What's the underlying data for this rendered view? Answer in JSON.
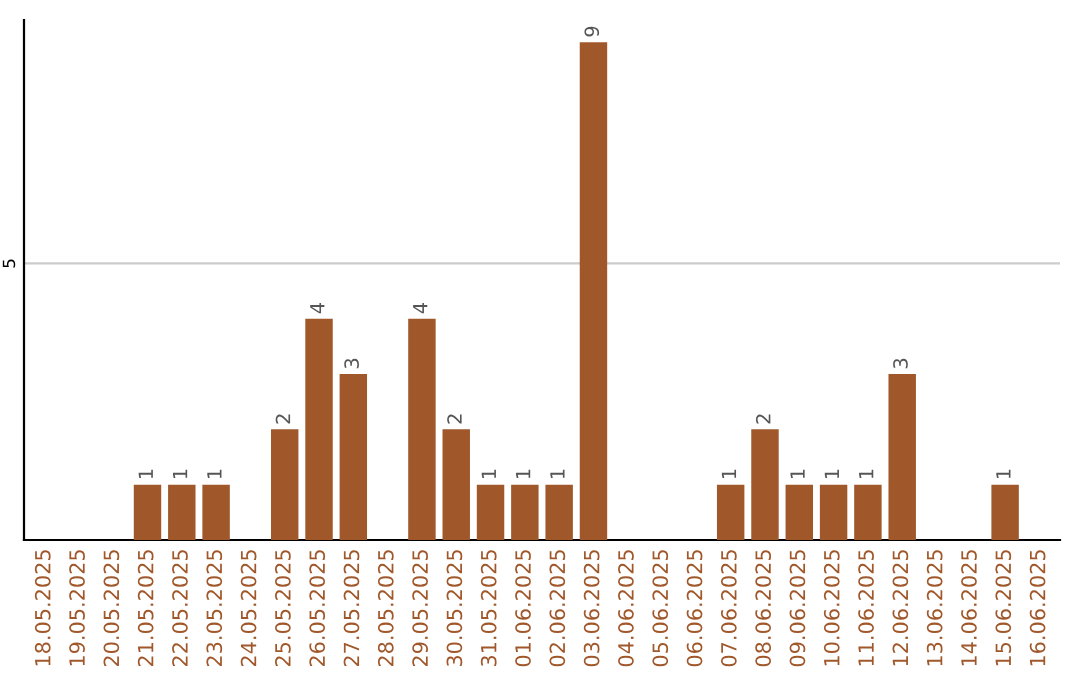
{
  "chart_data": {
    "type": "bar",
    "categories": [
      "18.05.2025",
      "19.05.2025",
      "20.05.2025",
      "21.05.2025",
      "22.05.2025",
      "23.05.2025",
      "24.05.2025",
      "25.05.2025",
      "26.05.2025",
      "27.05.2025",
      "28.05.2025",
      "29.05.2025",
      "30.05.2025",
      "31.05.2025",
      "01.06.2025",
      "02.06.2025",
      "03.06.2025",
      "04.06.2025",
      "05.06.2025",
      "06.06.2025",
      "07.06.2025",
      "08.06.2025",
      "09.06.2025",
      "10.06.2025",
      "11.06.2025",
      "12.06.2025",
      "13.06.2025",
      "14.06.2025",
      "15.06.2025",
      "16.06.2025"
    ],
    "values": [
      0,
      0,
      0,
      1,
      1,
      1,
      0,
      2,
      4,
      3,
      0,
      4,
      2,
      1,
      1,
      1,
      9,
      0,
      0,
      0,
      1,
      2,
      1,
      1,
      1,
      3,
      0,
      0,
      1,
      0
    ],
    "value_labels": [
      null,
      null,
      null,
      "1",
      "1",
      "1",
      null,
      "2",
      "4",
      "3",
      null,
      "4",
      "2",
      "1",
      "1",
      "1",
      "9",
      null,
      null,
      null,
      "1",
      "2",
      "1",
      "1",
      "1",
      "3",
      null,
      null,
      "1",
      null
    ],
    "color": "#a0572a",
    "ylim": [
      0,
      9.4
    ],
    "yticks": [
      5
    ],
    "grid": "y"
  }
}
